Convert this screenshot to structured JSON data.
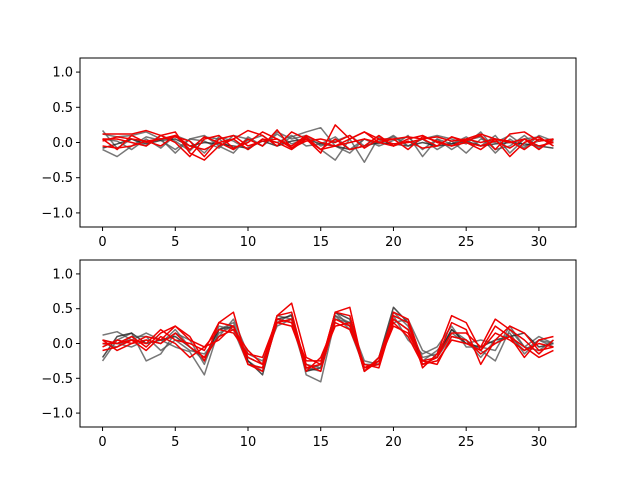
{
  "chart_data": [
    {
      "type": "line",
      "title": "",
      "xlabel": "",
      "ylabel": "",
      "xlim": [
        -1.55,
        32.55
      ],
      "ylim": [
        -1.2,
        1.2
      ],
      "xticks": [
        0,
        5,
        10,
        15,
        20,
        25,
        30
      ],
      "yticks": [
        -1.0,
        -0.5,
        0.0,
        0.5,
        1.0
      ],
      "xtick_labels": [
        "0",
        "5",
        "10",
        "15",
        "20",
        "25",
        "30"
      ],
      "ytick_labels": [
        "−1.0",
        "−0.5",
        "0.0",
        "0.5",
        "1.0"
      ],
      "grid": false,
      "series": [
        {
          "color": "#555555",
          "values": [
            0.17,
            -0.08,
            0.05,
            -0.05,
            0.1,
            0.02,
            -0.12,
            0.08,
            0.05,
            -0.1,
            0.03,
            0.1,
            -0.05,
            0.08,
            0.15,
            0.21,
            -0.05,
            -0.15,
            0.05,
            -0.05,
            0.03,
            0.08,
            -0.1,
            0.05,
            -0.02,
            0.08,
            -0.05,
            0.1,
            -0.15,
            0.05,
            0.08,
            -0.05
          ]
        },
        {
          "color": "#555555",
          "values": [
            -0.1,
            -0.2,
            -0.05,
            0.08,
            0.03,
            -0.1,
            0.05,
            0.02,
            -0.08,
            0.1,
            0.05,
            -0.05,
            0.12,
            -0.02,
            0.05,
            -0.1,
            -0.25,
            0.05,
            -0.28,
            0.08,
            -0.05,
            0.1,
            -0.2,
            0.05,
            -0.1,
            0.03,
            0.08,
            -0.15,
            0.05,
            -0.08,
            0.1,
            0.02
          ]
        },
        {
          "color": "#555555",
          "values": [
            0.05,
            0.02,
            -0.1,
            0.05,
            -0.08,
            0.1,
            0.02,
            -0.15,
            0.08,
            0.02,
            -0.1,
            0.05,
            0.0,
            0.1,
            -0.05,
            -0.02,
            0.08,
            -0.1,
            0.05,
            -0.02,
            0.1,
            -0.05,
            0.05,
            -0.1,
            0.02,
            -0.15,
            0.05,
            0.0,
            0.1,
            -0.05,
            0.02,
            0.05
          ]
        },
        {
          "color": "#222222",
          "values": [
            -0.08,
            -0.02,
            0.05,
            -0.02,
            0.03,
            0.05,
            -0.05,
            0.0,
            -0.02,
            -0.05,
            -0.08,
            0.02,
            -0.05,
            0.02,
            0.05,
            -0.02,
            -0.05,
            -0.1,
            -0.05,
            0.0,
            -0.02,
            -0.05,
            0.0,
            -0.05,
            -0.02,
            0.02,
            -0.05,
            -0.02,
            0.0,
            -0.02,
            -0.05,
            -0.08
          ]
        },
        {
          "color": "#555555",
          "values": [
            0.12,
            0.08,
            0.1,
            0.15,
            0.05,
            -0.15,
            0.05,
            0.1,
            -0.05,
            -0.15,
            0.08,
            -0.05,
            0.15,
            0.05,
            0.1,
            -0.05,
            0.02,
            0.1,
            -0.05,
            0.02,
            0.08,
            -0.05,
            0.05,
            0.1,
            0.05,
            -0.02,
            0.15,
            -0.1,
            -0.05,
            0.1,
            -0.08,
            0.05
          ]
        },
        {
          "color": "#ee0000",
          "values": [
            0.12,
            0.12,
            0.12,
            0.17,
            0.1,
            0.15,
            -0.15,
            -0.25,
            -0.05,
            0.05,
            0.17,
            0.1,
            -0.05,
            0.15,
            0.05,
            -0.15,
            0.25,
            0.05,
            0.15,
            0.0,
            0.05,
            0.08,
            0.05,
            -0.05,
            0.08,
            0.02,
            0.1,
            -0.1,
            0.12,
            0.15,
            0.02,
            0.05
          ]
        },
        {
          "color": "#ee0000",
          "values": [
            0.02,
            0.08,
            0.05,
            0.02,
            -0.05,
            0.1,
            -0.1,
            0.08,
            0.0,
            -0.1,
            0.05,
            -0.05,
            0.18,
            -0.08,
            0.08,
            -0.1,
            0.05,
            -0.1,
            -0.05,
            0.1,
            -0.05,
            0.02,
            -0.08,
            -0.05,
            0.08,
            0.0,
            -0.05,
            0.02,
            -0.08,
            0.05,
            -0.05,
            0.0
          ]
        },
        {
          "color": "#ee0000",
          "values": [
            -0.05,
            -0.08,
            -0.05,
            0.02,
            0.05,
            0.08,
            0.02,
            -0.2,
            0.05,
            0.1,
            -0.05,
            0.02,
            0.05,
            -0.08,
            0.02,
            0.05,
            0.0,
            0.1,
            -0.08,
            0.05,
            0.05,
            -0.1,
            0.08,
            0.02,
            -0.05,
            0.05,
            0.12,
            0.05,
            0.0,
            0.05,
            -0.1,
            0.05
          ]
        },
        {
          "color": "#ee0000",
          "values": [
            0.05,
            0.05,
            0.0,
            -0.05,
            0.1,
            0.0,
            -0.2,
            0.05,
            0.1,
            -0.08,
            0.0,
            0.15,
            0.05,
            -0.05,
            0.1,
            0.0,
            -0.05,
            0.05,
            0.15,
            0.05,
            -0.02,
            0.0,
            0.05,
            0.08,
            0.02,
            0.05,
            0.0,
            0.05,
            -0.2,
            0.0,
            0.08,
            -0.05
          ]
        },
        {
          "color": "#ee0000",
          "values": [
            0.05,
            -0.1,
            0.1,
            0.0,
            0.05,
            0.1,
            -0.05,
            -0.1,
            0.0,
            0.05,
            -0.1,
            0.05,
            0.0,
            -0.1,
            0.05,
            -0.1,
            -0.05,
            0.0,
            0.05,
            0.0,
            -0.05,
            0.05,
            0.1,
            0.0,
            -0.05,
            0.0,
            -0.1,
            0.05,
            0.02,
            -0.1,
            0.05,
            0.0
          ]
        }
      ]
    },
    {
      "type": "line",
      "title": "",
      "xlabel": "",
      "ylabel": "",
      "xlim": [
        -1.55,
        32.55
      ],
      "ylim": [
        -1.2,
        1.2
      ],
      "xticks": [
        0,
        5,
        10,
        15,
        20,
        25,
        30
      ],
      "yticks": [
        -1.0,
        -0.5,
        0.0,
        0.5,
        1.0
      ],
      "xtick_labels": [
        "0",
        "5",
        "10",
        "15",
        "20",
        "25",
        "30"
      ],
      "ytick_labels": [
        "−1.0",
        "−0.5",
        "0.0",
        "0.5",
        "1.0"
      ],
      "grid": false,
      "series": [
        {
          "color": "#555555",
          "values": [
            0.12,
            0.17,
            0.05,
            0.15,
            0.05,
            -0.05,
            -0.12,
            -0.45,
            0.2,
            0.3,
            -0.25,
            -0.4,
            0.3,
            0.42,
            -0.45,
            -0.55,
            0.35,
            0.3,
            -0.4,
            -0.2,
            0.4,
            0.05,
            -0.15,
            -0.05,
            0.25,
            -0.05,
            -0.05,
            -0.1,
            0.25,
            -0.05,
            0.1,
            0.0
          ]
        },
        {
          "color": "#555555",
          "values": [
            -0.25,
            0.05,
            0.15,
            -0.25,
            -0.15,
            0.15,
            0.05,
            -0.3,
            0.25,
            0.2,
            -0.3,
            -0.35,
            0.35,
            0.3,
            -0.4,
            -0.3,
            0.4,
            0.2,
            -0.35,
            -0.25,
            0.45,
            0.25,
            -0.2,
            -0.15,
            0.2,
            0.05,
            -0.1,
            -0.25,
            0.2,
            -0.05,
            -0.1,
            0.05
          ]
        },
        {
          "color": "#555555",
          "values": [
            0.05,
            0.0,
            -0.05,
            0.05,
            0.0,
            0.2,
            -0.05,
            -0.25,
            0.15,
            0.25,
            -0.2,
            -0.3,
            0.4,
            0.35,
            -0.35,
            -0.4,
            0.45,
            0.25,
            -0.3,
            -0.3,
            0.35,
            0.2,
            -0.25,
            -0.1,
            0.15,
            0.0,
            0.05,
            0.0,
            0.15,
            -0.15,
            0.05,
            -0.05
          ]
        },
        {
          "color": "#222222",
          "values": [
            -0.2,
            0.1,
            0.15,
            0.0,
            0.05,
            0.1,
            -0.05,
            -0.2,
            0.2,
            0.25,
            -0.25,
            -0.45,
            0.35,
            0.4,
            -0.4,
            -0.35,
            0.45,
            0.35,
            -0.4,
            -0.2,
            0.52,
            0.3,
            -0.3,
            -0.2,
            0.2,
            0.0,
            -0.05,
            0.05,
            0.1,
            0.15,
            -0.05,
            0.0
          ]
        },
        {
          "color": "#555555",
          "values": [
            0.0,
            -0.05,
            0.1,
            0.1,
            -0.1,
            0.05,
            -0.1,
            -0.15,
            0.1,
            0.35,
            -0.15,
            -0.25,
            0.25,
            0.35,
            -0.3,
            -0.35,
            0.4,
            0.3,
            -0.25,
            -0.3,
            0.3,
            0.35,
            -0.1,
            -0.2,
            0.1,
            0.05,
            -0.2,
            0.05,
            0.1,
            -0.1,
            0.05,
            0.0
          ]
        },
        {
          "color": "#ee0000",
          "values": [
            0.0,
            0.0,
            0.1,
            -0.05,
            0.15,
            0.25,
            0.1,
            -0.25,
            0.3,
            0.25,
            -0.2,
            -0.3,
            0.4,
            0.58,
            -0.2,
            -0.3,
            0.45,
            0.52,
            -0.4,
            -0.2,
            0.4,
            0.3,
            -0.35,
            -0.15,
            0.4,
            0.3,
            -0.1,
            0.25,
            0.1,
            -0.2,
            0.05,
            0.1
          ]
        },
        {
          "color": "#ee0000",
          "values": [
            0.05,
            0.0,
            0.05,
            0.0,
            0.2,
            0.05,
            0.0,
            -0.1,
            0.3,
            0.45,
            -0.3,
            -0.35,
            0.4,
            0.45,
            -0.35,
            -0.3,
            0.45,
            0.4,
            -0.35,
            -0.3,
            0.45,
            0.35,
            -0.25,
            -0.2,
            0.3,
            0.2,
            -0.3,
            0.05,
            0.25,
            0.15,
            -0.1,
            -0.05
          ]
        },
        {
          "color": "#ee0000",
          "values": [
            -0.05,
            0.05,
            0.0,
            0.1,
            0.05,
            0.25,
            0.05,
            -0.05,
            0.05,
            0.25,
            -0.3,
            -0.4,
            0.3,
            0.35,
            -0.4,
            -0.2,
            0.3,
            0.2,
            -0.3,
            -0.35,
            0.35,
            0.2,
            -0.3,
            -0.2,
            0.15,
            0.15,
            -0.05,
            0.35,
            0.2,
            0.05,
            -0.15,
            0.05
          ]
        },
        {
          "color": "#ee0000",
          "values": [
            -0.1,
            -0.05,
            0.05,
            -0.1,
            0.1,
            0.0,
            -0.2,
            -0.05,
            0.2,
            0.15,
            -0.15,
            -0.2,
            0.35,
            0.3,
            -0.25,
            -0.25,
            0.25,
            0.3,
            -0.4,
            -0.25,
            0.25,
            0.15,
            -0.25,
            -0.3,
            0.1,
            0.05,
            -0.15,
            0.0,
            0.1,
            -0.05,
            -0.2,
            -0.1
          ]
        },
        {
          "color": "#ee0000",
          "values": [
            0.05,
            -0.1,
            0.0,
            0.05,
            0.0,
            0.15,
            -0.05,
            -0.2,
            0.1,
            0.2,
            -0.1,
            -0.3,
            0.3,
            0.25,
            -0.3,
            -0.4,
            0.35,
            0.25,
            -0.35,
            -0.25,
            0.3,
            0.1,
            -0.3,
            -0.25,
            0.05,
            0.0,
            -0.1,
            0.15,
            0.05,
            -0.1,
            0.0,
            -0.05
          ]
        }
      ]
    }
  ]
}
